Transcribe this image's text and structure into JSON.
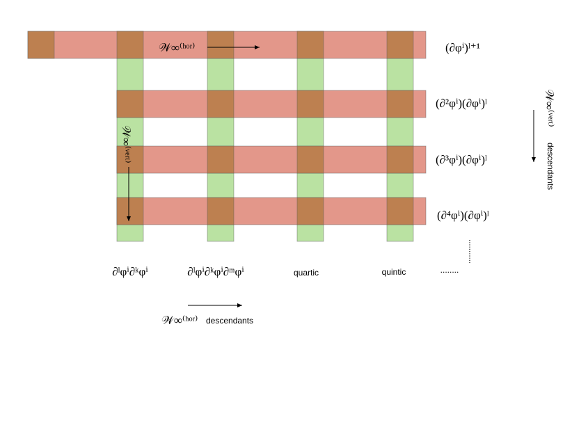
{
  "rows": [
    {
      "label": "(∂φⁱ)ˡ⁺¹"
    },
    {
      "label": "(∂²φⁱ)(∂φⁱ)ˡ"
    },
    {
      "label": "(∂³φⁱ)(∂φⁱ)ˡ"
    },
    {
      "label": "(∂⁴φⁱ)(∂φⁱ)ˡ"
    }
  ],
  "columns": [
    {
      "label": "∂ˡφⁱ∂ᵏφⁱ"
    },
    {
      "label": "∂ˡφⁱ∂ᵏφⁱ∂ᵐφⁱ"
    },
    {
      "label": "quartic"
    },
    {
      "label": "quintic"
    },
    {
      "label": "........"
    }
  ],
  "arrows": {
    "top_horizontal": "𝒲∞⁽ʰᵒʳ⁾",
    "inner_vertical": "𝒲∞⁽ᵛᵉʳᵗ⁾",
    "right_vertical": "𝒲∞⁽ᵛᵉʳᵗ⁾",
    "right_descendants": "descendants",
    "bottom_horizontal": "𝒲∞⁽ʰᵒʳ⁾",
    "bottom_descendants": "descendants"
  }
}
